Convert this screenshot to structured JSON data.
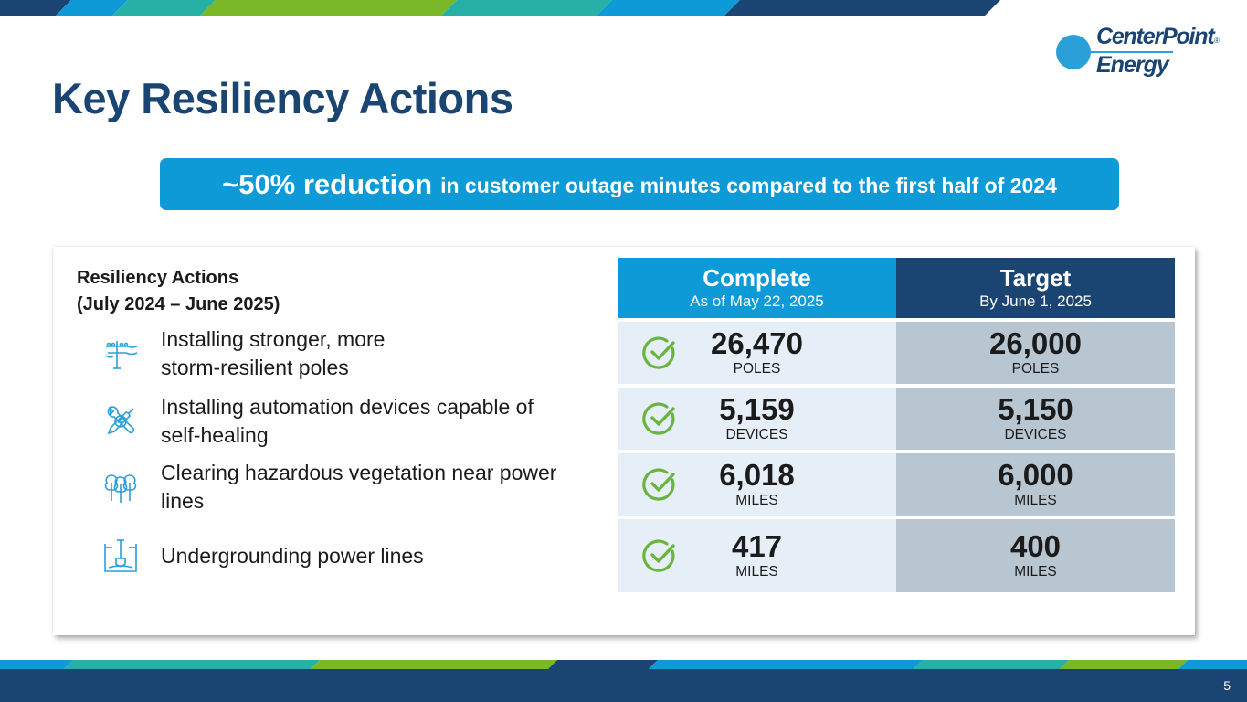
{
  "brand": {
    "name_line1": "CenterPoint",
    "name_line2": "Energy",
    "registered_mark": "®",
    "colors": {
      "navy": "#1a4472",
      "blue": "#0e9ad7",
      "green": "#7ab828",
      "teal": "#27b0a6",
      "light_blue": "#2a9fd8",
      "check_green": "#6ab43e"
    }
  },
  "title": "Key Resiliency Actions",
  "banner": {
    "strong": "~50% reduction",
    "text": "in customer outage minutes compared to the first half of 2024"
  },
  "actions": {
    "heading_line1": "Resiliency Actions",
    "heading_line2": "(July 2024 – June 2025)",
    "items": [
      {
        "icon": "utility-pole-icon",
        "label": "Installing stronger, more\nstorm-resilient poles"
      },
      {
        "icon": "wrench-screwdriver-icon",
        "label": "Installing automation devices capable of\nself-healing"
      },
      {
        "icon": "trees-icon",
        "label": "Clearing hazardous vegetation near power\nlines"
      },
      {
        "icon": "underground-shovel-icon",
        "label": "Undergrounding power lines"
      }
    ]
  },
  "table": {
    "complete_header": "Complete",
    "complete_sub": "As of May 22, 2025",
    "target_header": "Target",
    "target_sub": "By June 1, 2025",
    "rows": [
      {
        "complete": "26,470",
        "complete_unit": "POLES",
        "target": "26,000",
        "target_unit": "POLES",
        "status_icon": "check-circle-icon"
      },
      {
        "complete": "5,159",
        "complete_unit": "DEVICES",
        "target": "5,150",
        "target_unit": "DEVICES",
        "status_icon": "check-circle-icon"
      },
      {
        "complete": "6,018",
        "complete_unit": "MILES",
        "target": "6,000",
        "target_unit": "MILES",
        "status_icon": "check-circle-icon"
      },
      {
        "complete": "417",
        "complete_unit": "MILES",
        "target": "400",
        "target_unit": "MILES",
        "status_icon": "check-circle-icon"
      }
    ]
  },
  "page_number": "5"
}
